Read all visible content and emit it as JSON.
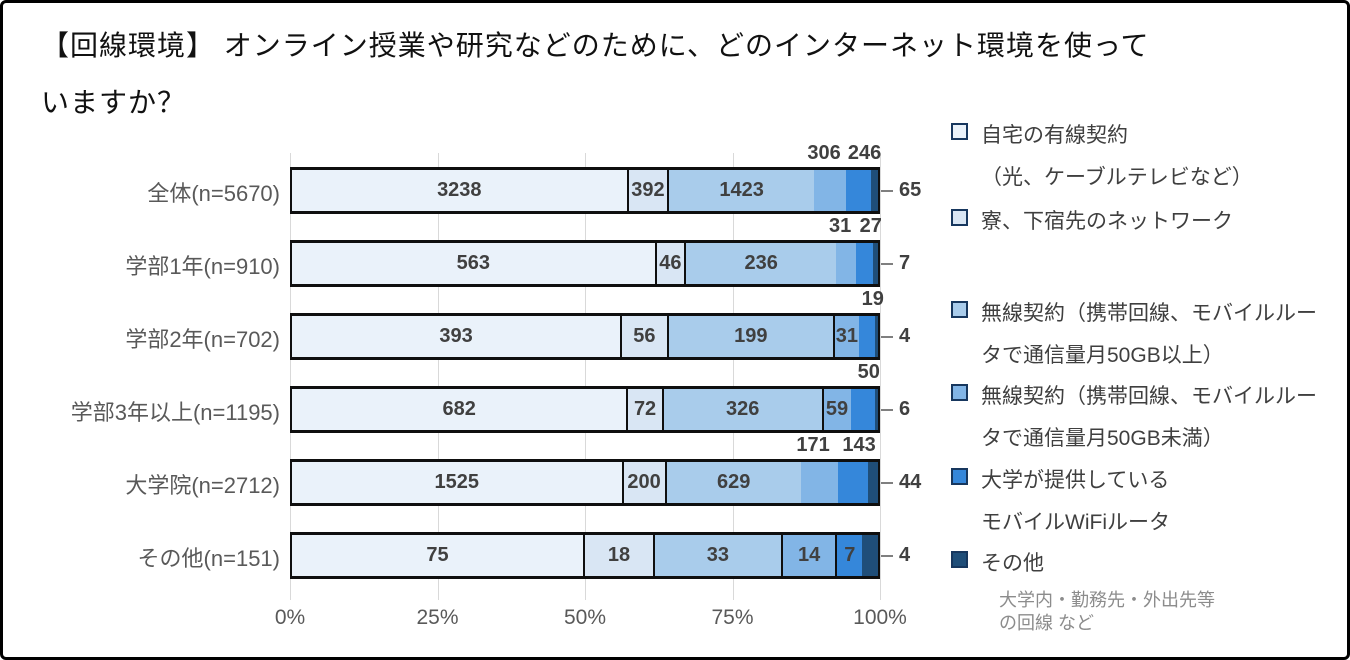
{
  "title": {
    "lines": [
      "【回線環境】 オンライン授業や研究などのために、どのインターネット環境を使って",
      "いますか？"
    ]
  },
  "chart_data": {
    "type": "bar",
    "variant": "stacked-100-horizontal",
    "title": "【回線環境】 オンライン授業や研究などのために、どのインターネット環境を使っていますか？",
    "categories": [
      "全体(n=5670)",
      "学部1年(n=910)",
      "学部2年(n=702)",
      "学部3年以上(n=1195)",
      "大学院(n=2712)",
      "その他(n=151)"
    ],
    "totals": [
      5670,
      910,
      702,
      1195,
      2712,
      151
    ],
    "series": [
      {
        "name": "自宅の有線契約（光、ケーブルテレビなど）",
        "color": "#eaf2fa",
        "values": [
          3238,
          563,
          393,
          682,
          1525,
          75
        ]
      },
      {
        "name": "寮、下宿先のネットワーク",
        "color": "#d9e6f4",
        "values": [
          392,
          46,
          56,
          72,
          200,
          18
        ]
      },
      {
        "name": "無線契約（携帯回線、モバイルルータで通信量月50GB以上）",
        "color": "#a9cceb",
        "values": [
          1423,
          236,
          199,
          326,
          629,
          33
        ]
      },
      {
        "name": "無線契約（携帯回線、モバイルルータで通信量月50GB未満）",
        "color": "#82b5e6",
        "values": [
          306,
          31,
          31,
          59,
          171,
          14
        ]
      },
      {
        "name": "大学が提供しているモバイルWiFiルータ",
        "color": "#3587da",
        "values": [
          246,
          27,
          19,
          50,
          143,
          7
        ]
      },
      {
        "name": "その他",
        "color": "#1f4e79",
        "values": [
          65,
          7,
          4,
          6,
          44,
          4
        ]
      }
    ],
    "value_label_placement": [
      [
        "in",
        "in",
        "in",
        "above",
        "above",
        "right"
      ],
      [
        "in",
        "in",
        "in",
        "above",
        "above",
        "right"
      ],
      [
        "in",
        "in",
        "in",
        "in",
        "above",
        "right"
      ],
      [
        "in",
        "in",
        "in",
        "in",
        "above",
        "right"
      ],
      [
        "in",
        "in",
        "in",
        "above",
        "above",
        "right"
      ],
      [
        "in",
        "in",
        "in",
        "in",
        "in",
        "right"
      ]
    ],
    "xticks": [
      "0%",
      "25%",
      "50%",
      "75%",
      "100%"
    ],
    "xlim": [
      0,
      100
    ],
    "grid": true,
    "legend_position": "right"
  },
  "legend": {
    "items": [
      {
        "lines": [
          "自宅の有線契約",
          "（光、ケーブルテレビなど）"
        ],
        "color": "#eaf2fa"
      },
      {
        "lines": [
          "寮、下宿先のネットワーク"
        ],
        "color": "#d9e6f4"
      },
      {
        "lines": [
          "無線契約（携帯回線、モバイルルー",
          "タで通信量月50GB以上）"
        ],
        "color": "#a9cceb"
      },
      {
        "lines": [
          "無線契約（携帯回線、モバイルルー",
          "タで通信量月50GB未満）"
        ],
        "color": "#82b5e6"
      },
      {
        "lines": [
          "大学が提供している",
          "モバイルWiFiルータ"
        ],
        "color": "#3587da"
      },
      {
        "lines": [
          "その他"
        ],
        "color": "#1f4e79",
        "note_lines": [
          "大学内・勤務先・外出先等",
          "の回線 など"
        ]
      }
    ]
  },
  "colors": {
    "bar_border": "#0f0f0f",
    "grid": "#d9d9d9",
    "axis_label": "#595959",
    "value_label": "#404040",
    "tick_dash": "#7f7f7f"
  }
}
